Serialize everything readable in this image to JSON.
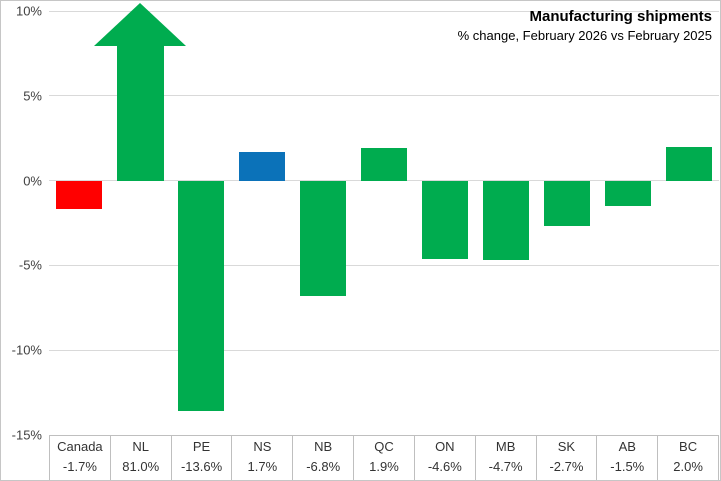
{
  "header": {
    "title": "Manufacturing shipments",
    "subtitle": "% change, February 2026 vs February 2025"
  },
  "chart_data": {
    "type": "bar",
    "title": "Manufacturing shipments",
    "subtitle": "% change, February 2026 vs February 2025",
    "xlabel": "",
    "ylabel": "",
    "categories": [
      "Canada",
      "NL",
      "PE",
      "NS",
      "NB",
      "QC",
      "ON",
      "MB",
      "SK",
      "AB",
      "BC"
    ],
    "values": [
      -1.7,
      81.0,
      -13.6,
      1.7,
      -6.8,
      1.9,
      -4.6,
      -4.7,
      -2.7,
      -1.5,
      2.0
    ],
    "value_labels": [
      "-1.7%",
      "81.0%",
      "-13.6%",
      "1.7%",
      "-6.8%",
      "1.9%",
      "-4.6%",
      "-4.7%",
      "-2.7%",
      "-1.5%",
      "2.0%"
    ],
    "bar_colors": [
      "#ff0000",
      "#00ac4f",
      "#00ac4f",
      "#0b72b9",
      "#00ac4f",
      "#00ac4f",
      "#00ac4f",
      "#00ac4f",
      "#00ac4f",
      "#00ac4f",
      "#00ac4f"
    ],
    "offscale_marker": {
      "category": "NL",
      "style": "up-arrow",
      "note": "value exceeds axis max, drawn as arrow through chart top"
    },
    "ylim": [
      -15,
      10
    ],
    "ytick_step": 5,
    "ytick_labels": [
      "10%",
      "5%",
      "0%",
      "-5%",
      "-10%",
      "-15%"
    ],
    "grid": true,
    "legend": "none",
    "data_table_shown": true
  },
  "colors": {
    "green_default": "#00ac4f",
    "canada_red": "#ff0000",
    "ns_blue": "#0b72b9",
    "gridline": "#d9d9d9",
    "table_border": "#bfbfbf"
  }
}
